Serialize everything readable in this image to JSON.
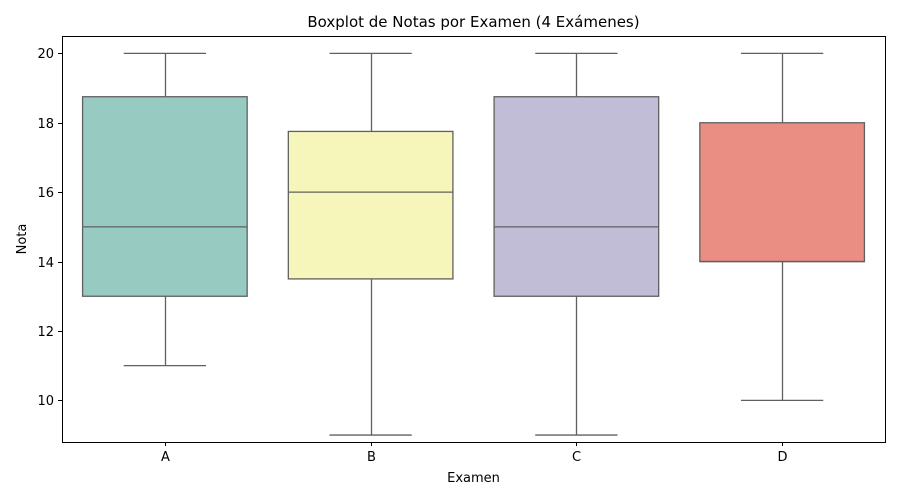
{
  "chart_data": {
    "type": "boxplot",
    "title": "Boxplot de Notas por Examen (4 Exámenes)",
    "xlabel": "Examen",
    "ylabel": "Nota",
    "ylim": [
      8.8,
      20.5
    ],
    "yticks": [
      10,
      12,
      14,
      16,
      18,
      20
    ],
    "categories": [
      "A",
      "B",
      "C",
      "D"
    ],
    "boxes": [
      {
        "category": "A",
        "whisker_low": 11,
        "q1": 13,
        "median": 15,
        "q3": 18.75,
        "whisker_high": 20,
        "color": "#97cbc2"
      },
      {
        "category": "B",
        "whisker_low": 9,
        "q1": 13.5,
        "median": 16,
        "q3": 17.75,
        "whisker_high": 20,
        "color": "#f6f6bb"
      },
      {
        "category": "C",
        "whisker_low": 9,
        "q1": 13,
        "median": 15,
        "q3": 18.75,
        "whisker_high": 20,
        "color": "#c1bdd6"
      },
      {
        "category": "D",
        "whisker_low": 10,
        "q1": 14,
        "median": 14,
        "q3": 18,
        "whisker_high": 20,
        "color": "#ea8d82"
      }
    ],
    "line_color": "#606060",
    "grid": false,
    "legend": "none"
  }
}
